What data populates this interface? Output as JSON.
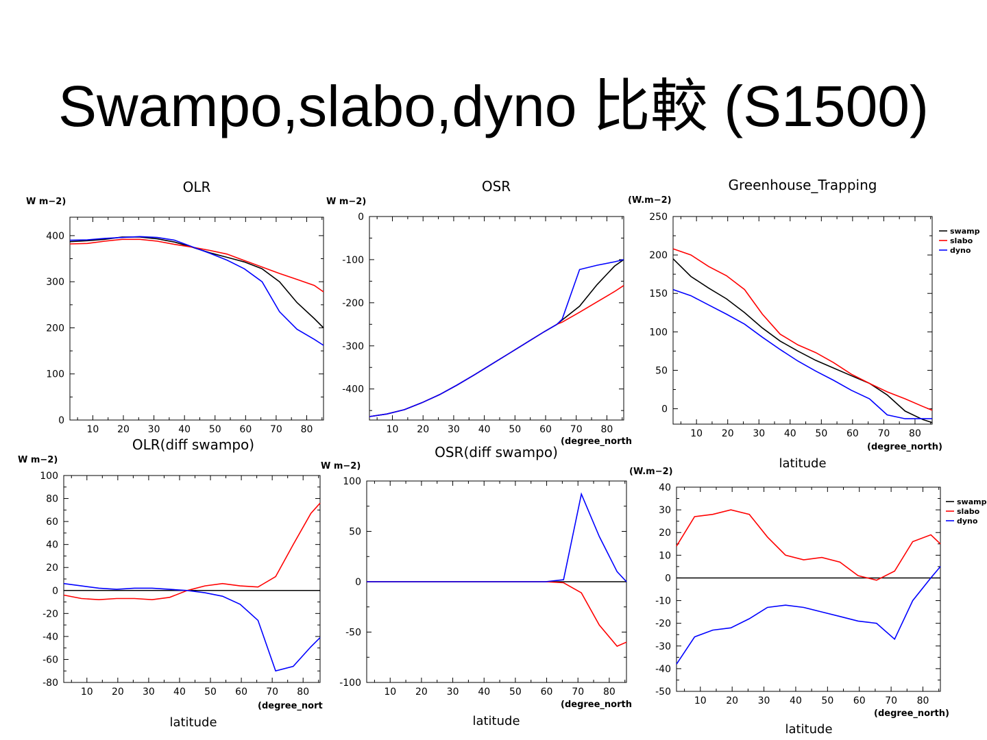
{
  "slide": {
    "title": "Swampo,slabo,dyno 比較 (S1500)"
  },
  "colors": {
    "swamp": "#000000",
    "slabo": "#ff0000",
    "dyno": "#0000ff",
    "zero_line": "#000000"
  },
  "chart_data": [
    {
      "type": "line",
      "title": "OLR",
      "ylabel": "W m−2)",
      "xlabel": "",
      "x_unit_label": "",
      "ylim": [
        0,
        440
      ],
      "xlim": [
        2.5,
        85.5
      ],
      "yticks": [
        0,
        100,
        200,
        300,
        400
      ],
      "xticks": [
        10,
        20,
        30,
        40,
        50,
        60,
        70,
        80
      ],
      "x": [
        2.5,
        8.2,
        13.9,
        19.6,
        25.4,
        31.1,
        36.8,
        42.5,
        48.2,
        53.9,
        59.6,
        65.4,
        71.1,
        76.8,
        82.5,
        85.5
      ],
      "legend": null,
      "series": [
        {
          "name": "swamp",
          "values": [
            387,
            389,
            392,
            397,
            397,
            393,
            386,
            375,
            363,
            353,
            343,
            328,
            300,
            255,
            220,
            200
          ]
        },
        {
          "name": "slabo",
          "values": [
            382,
            383,
            388,
            392,
            392,
            388,
            381,
            375,
            368,
            360,
            346,
            332,
            318,
            305,
            292,
            278
          ]
        },
        {
          "name": "dyno",
          "values": [
            390,
            391,
            394,
            396,
            398,
            396,
            390,
            376,
            362,
            347,
            328,
            300,
            235,
            197,
            175,
            162
          ]
        }
      ]
    },
    {
      "type": "line",
      "title": "OSR",
      "ylabel": "W m−2)",
      "xlabel": "",
      "x_unit_label": "(degree_north",
      "ylim": [
        -472,
        0
      ],
      "xlim": [
        2.5,
        85.5
      ],
      "yticks": [
        -400,
        -300,
        -200,
        -100,
        0
      ],
      "xticks": [
        10,
        20,
        30,
        40,
        50,
        60,
        70,
        80
      ],
      "x": [
        2.5,
        8.2,
        13.9,
        19.6,
        25.4,
        31.1,
        36.8,
        42.5,
        48.2,
        53.9,
        59.6,
        63.7,
        65.4,
        71.1,
        76.8,
        82.5,
        85.5
      ],
      "legend": null,
      "series": [
        {
          "name": "swamp",
          "values": [
            -464,
            -458,
            -448,
            -432,
            -413,
            -391,
            -367,
            -342,
            -317,
            -292,
            -267,
            -250,
            -240,
            -208,
            -158,
            -115,
            -100
          ]
        },
        {
          "name": "slabo",
          "values": [
            -464,
            -458,
            -448,
            -432,
            -413,
            -391,
            -367,
            -342,
            -317,
            -292,
            -267,
            -250,
            -245,
            -222,
            -198,
            -174,
            -160
          ]
        },
        {
          "name": "dyno",
          "values": [
            -464,
            -458,
            -448,
            -432,
            -413,
            -391,
            -367,
            -342,
            -317,
            -292,
            -267,
            -250,
            -238,
            -123,
            -113,
            -105,
            -100
          ]
        }
      ]
    },
    {
      "type": "line",
      "title": "Greenhouse_Trapping",
      "ylabel": "(W.m−2)",
      "xlabel": "latitude",
      "x_unit_label": "(degree_north)",
      "ylim": [
        -20,
        250
      ],
      "xlim": [
        2.5,
        85.5
      ],
      "yticks": [
        0,
        50,
        100,
        150,
        200,
        250
      ],
      "xticks": [
        10,
        20,
        30,
        40,
        50,
        60,
        70,
        80
      ],
      "x": [
        2.5,
        8.2,
        13.9,
        19.6,
        25.4,
        31.1,
        36.8,
        42.5,
        48.2,
        53.9,
        59.6,
        65.4,
        71.1,
        76.8,
        82.5,
        85.5
      ],
      "legend": [
        "swamp",
        "slabo",
        "dyno"
      ],
      "series": [
        {
          "name": "swamp",
          "values": [
            195,
            172,
            157,
            143,
            125,
            105,
            88,
            75,
            63,
            53,
            43,
            33,
            18,
            -3,
            -14,
            -18
          ]
        },
        {
          "name": "slabo",
          "values": [
            208,
            200,
            185,
            173,
            155,
            123,
            97,
            83,
            73,
            60,
            45,
            33,
            22,
            13,
            3,
            -2
          ]
        },
        {
          "name": "dyno",
          "values": [
            155,
            147,
            135,
            123,
            110,
            93,
            77,
            62,
            49,
            37,
            24,
            13,
            -8,
            -13,
            -13,
            -13
          ]
        }
      ]
    },
    {
      "type": "line",
      "title": "OLR(diff swampo)",
      "ylabel": "W m−2)",
      "xlabel": "latitude",
      "x_unit_label": "(degree_nort",
      "ylim": [
        -80,
        100
      ],
      "xlim": [
        2.5,
        85.5
      ],
      "yticks": [
        -80,
        -60,
        -40,
        -20,
        0,
        20,
        40,
        60,
        80,
        100
      ],
      "xticks": [
        10,
        20,
        30,
        40,
        50,
        60,
        70,
        80
      ],
      "x": [
        2.5,
        8.2,
        13.9,
        19.6,
        25.4,
        31.1,
        36.8,
        42.5,
        48.2,
        53.9,
        59.6,
        65.4,
        71.1,
        76.8,
        82.5,
        85.5
      ],
      "zero_line": true,
      "legend": null,
      "series": [
        {
          "name": "slabo",
          "values": [
            -4,
            -7,
            -8,
            -7,
            -7,
            -8,
            -6,
            0,
            4,
            6,
            4,
            3,
            12,
            40,
            67,
            76
          ]
        },
        {
          "name": "dyno",
          "values": [
            6,
            4,
            2,
            1,
            2,
            2,
            1,
            0,
            -2,
            -5,
            -12,
            -26,
            -70,
            -66,
            -49,
            -41
          ]
        }
      ]
    },
    {
      "type": "line",
      "title": "OSR(diff swampo)",
      "ylabel": "W m−2)",
      "xlabel": "latitude",
      "x_unit_label": "(degree_north",
      "ylim": [
        -100,
        100
      ],
      "xlim": [
        2.5,
        85.5
      ],
      "yticks": [
        -100,
        -50,
        0,
        50,
        100
      ],
      "xticks": [
        10,
        20,
        30,
        40,
        50,
        60,
        70,
        80
      ],
      "x": [
        2.5,
        8.2,
        13.9,
        19.6,
        25.4,
        31.1,
        36.8,
        42.5,
        48.2,
        53.9,
        59.6,
        65.4,
        71.1,
        76.8,
        82.5,
        85.5
      ],
      "zero_line": true,
      "legend": null,
      "series": [
        {
          "name": "slabo",
          "values": [
            0,
            0,
            0,
            0,
            0,
            0,
            0,
            0,
            0,
            0,
            0,
            -1,
            -11,
            -43,
            -64,
            -60
          ]
        },
        {
          "name": "dyno",
          "values": [
            0,
            0,
            0,
            0,
            0,
            0,
            0,
            0,
            0,
            0,
            0,
            2,
            87,
            45,
            10,
            0
          ]
        }
      ]
    },
    {
      "type": "line",
      "title": "",
      "ylabel": "(W.m−2)",
      "xlabel": "latitude",
      "x_unit_label": "(degree_north)",
      "ylim": [
        -50,
        40
      ],
      "xlim": [
        2.5,
        85.5
      ],
      "yticks": [
        -50,
        -40,
        -30,
        -20,
        -10,
        0,
        10,
        20,
        30,
        40
      ],
      "xticks": [
        10,
        20,
        30,
        40,
        50,
        60,
        70,
        80
      ],
      "x": [
        2.5,
        8.2,
        13.9,
        19.6,
        25.4,
        31.1,
        36.8,
        42.5,
        48.2,
        53.9,
        59.6,
        65.4,
        71.1,
        76.8,
        82.5,
        85.5
      ],
      "zero_line": true,
      "legend": [
        "swamp",
        "slabo",
        "dyno"
      ],
      "series": [
        {
          "name": "slabo",
          "values": [
            14,
            27,
            28,
            30,
            28,
            18,
            10,
            8,
            9,
            7,
            1,
            -1,
            3,
            16,
            19,
            15
          ]
        },
        {
          "name": "dyno",
          "values": [
            -38,
            -26,
            -23,
            -22,
            -18,
            -13,
            -12,
            -13,
            -15,
            -17,
            -19,
            -20,
            -27,
            -10,
            0,
            5
          ]
        }
      ]
    }
  ]
}
